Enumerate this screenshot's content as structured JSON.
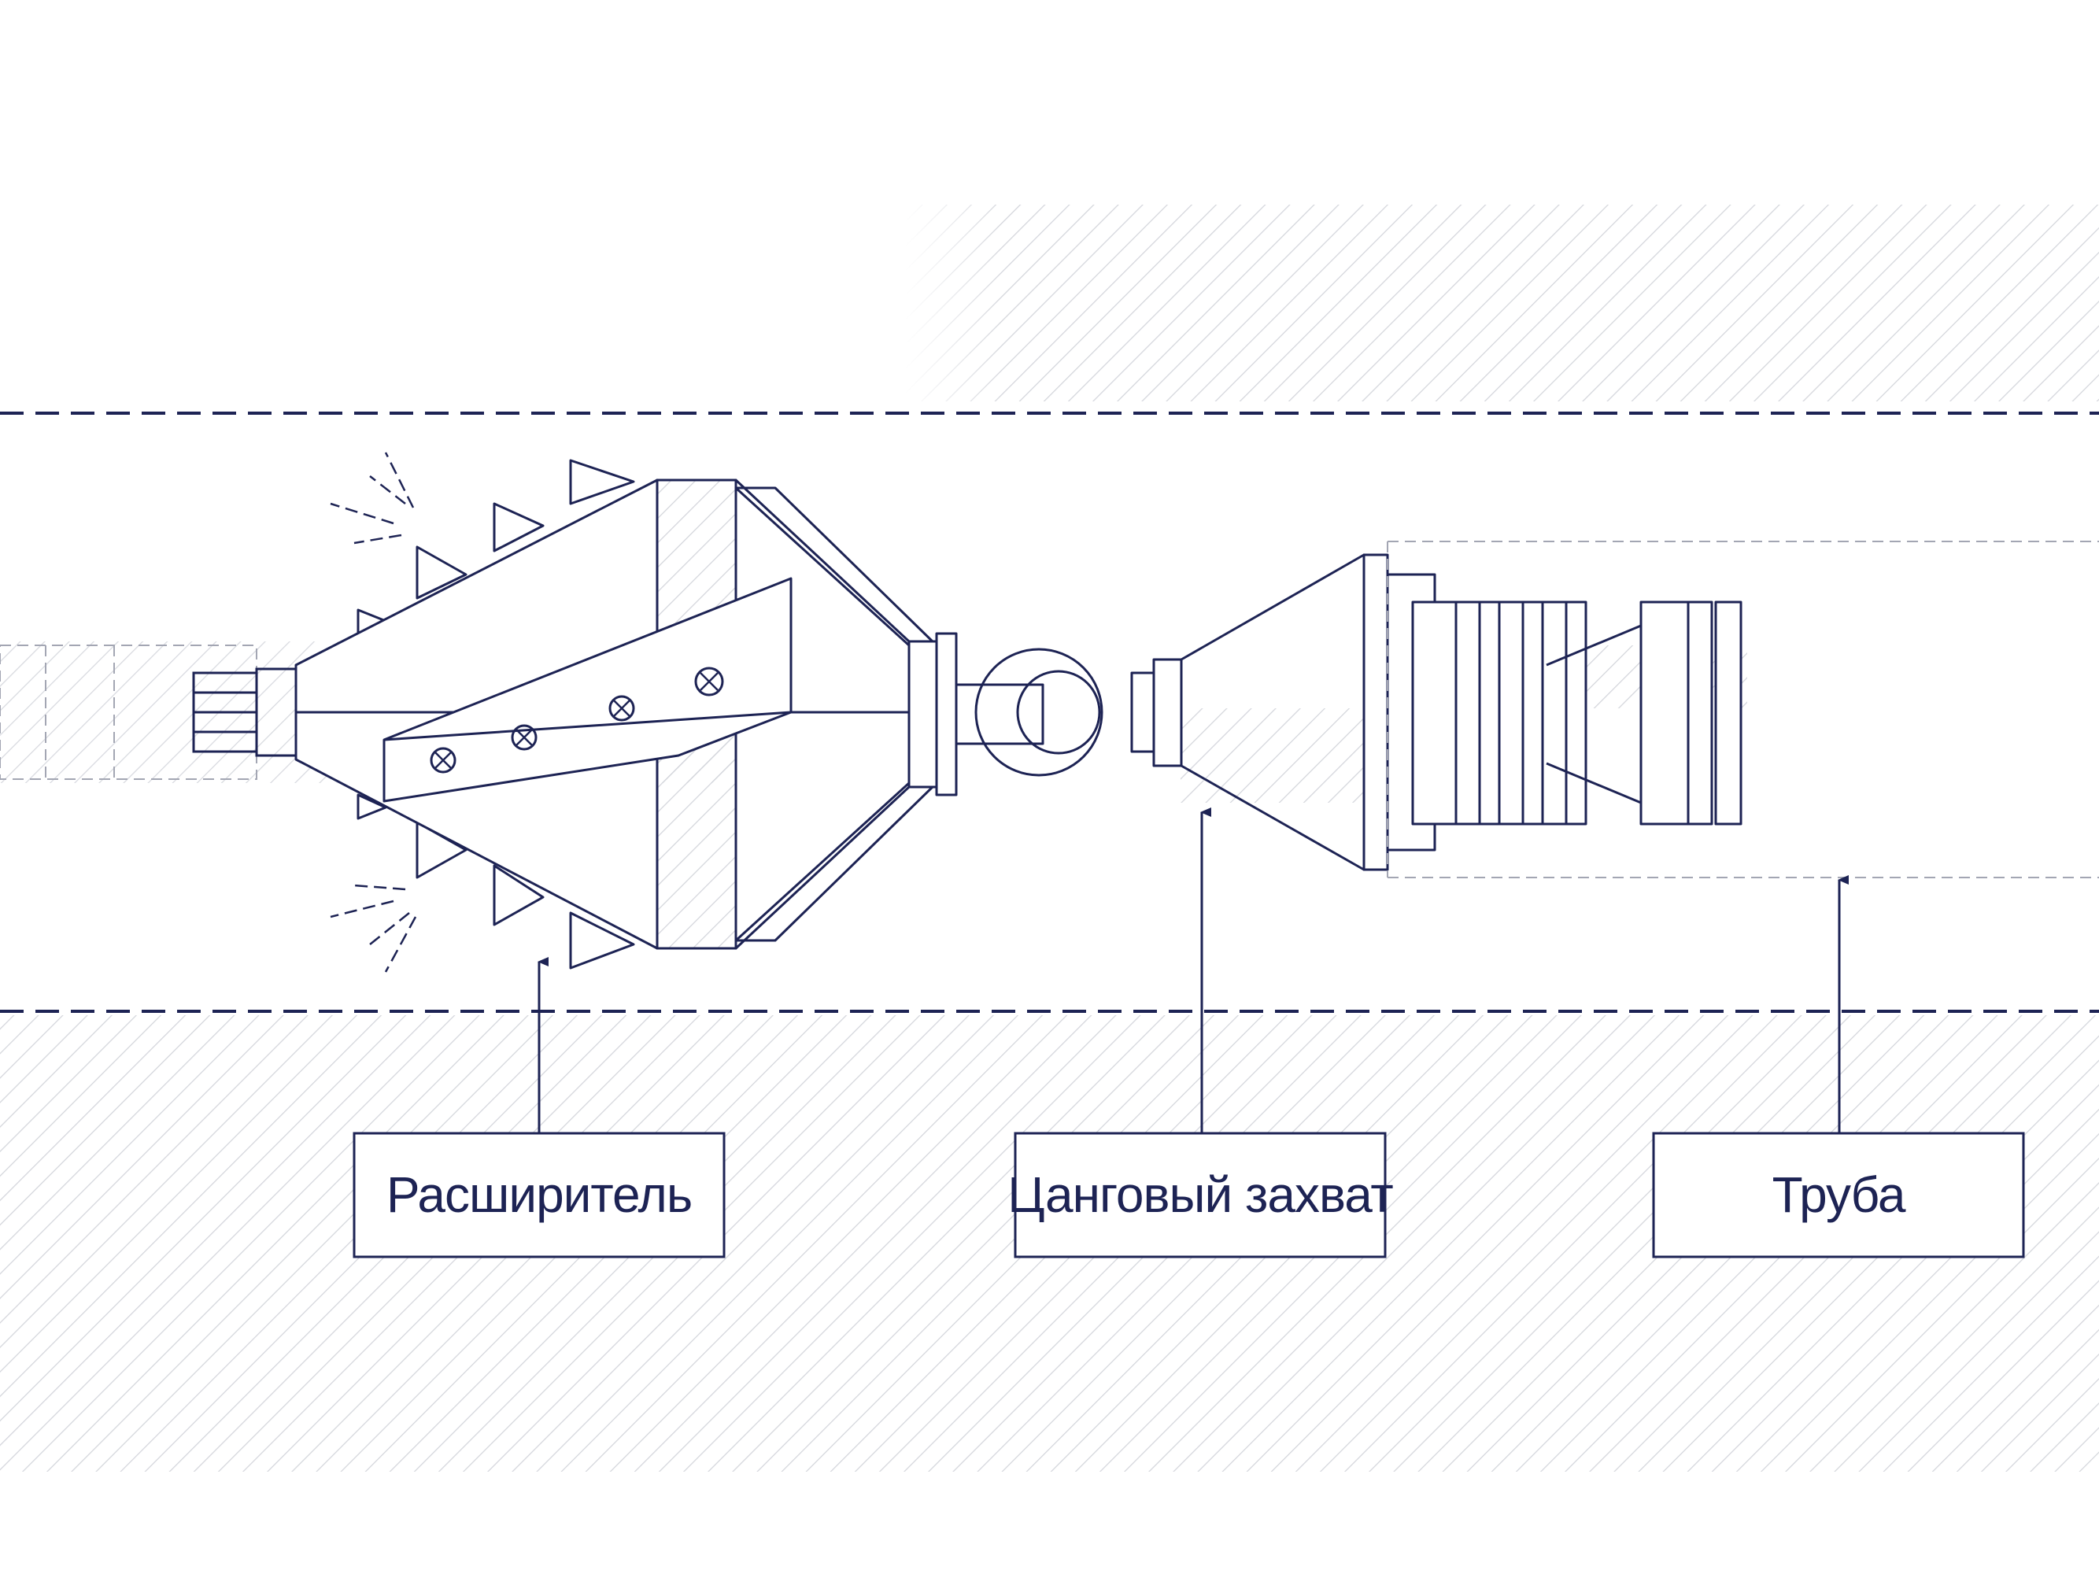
{
  "diagram": {
    "colors": {
      "line": "#1d2354",
      "hatch": "#d3d5db",
      "dash_light": "#a3a6b3",
      "background": "#ffffff"
    },
    "labels": {
      "reamer": "Расширитель",
      "collet_grip": "Цанговый захват",
      "pipe": "Труба"
    }
  }
}
